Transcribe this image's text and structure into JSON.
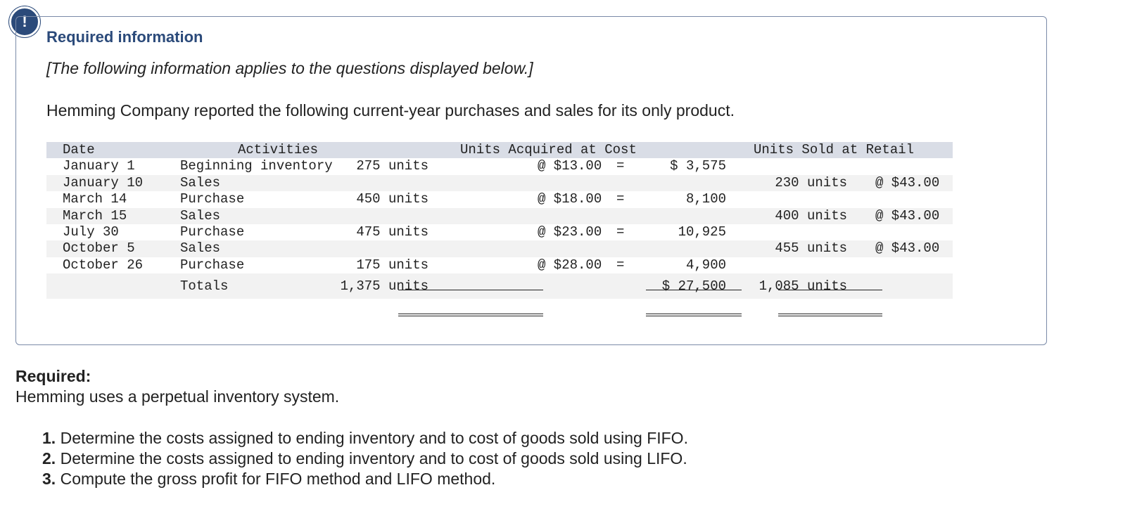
{
  "alert_icon": "!",
  "required_info_title": "Required information",
  "note": "[The following information applies to the questions displayed below.]",
  "intro": "Hemming Company reported the following current-year purchases and sales for its only product.",
  "table": {
    "headers": {
      "date": "Date",
      "activities": "Activities",
      "units_acquired": "Units Acquired at Cost",
      "units_sold": "Units Sold at Retail"
    },
    "rows": [
      {
        "date": "January 1",
        "activity": "Beginning inventory",
        "units": "275 units",
        "price": "@ $13.00",
        "eq": "=",
        "cost": "$ 3,575",
        "sold": "",
        "retail": ""
      },
      {
        "date": "January 10",
        "activity": "Sales",
        "units": "",
        "price": "",
        "eq": "",
        "cost": "",
        "sold": "230 units",
        "retail": "@ $43.00"
      },
      {
        "date": "March 14",
        "activity": "Purchase",
        "units": "450 units",
        "price": "@ $18.00",
        "eq": "=",
        "cost": "8,100",
        "sold": "",
        "retail": ""
      },
      {
        "date": "March 15",
        "activity": "Sales",
        "units": "",
        "price": "",
        "eq": "",
        "cost": "",
        "sold": "400 units",
        "retail": "@ $43.00"
      },
      {
        "date": "July 30",
        "activity": "Purchase",
        "units": "475 units",
        "price": "@ $23.00",
        "eq": "=",
        "cost": "10,925",
        "sold": "",
        "retail": ""
      },
      {
        "date": "October 5",
        "activity": "Sales",
        "units": "",
        "price": "",
        "eq": "",
        "cost": "",
        "sold": "455 units",
        "retail": "@ $43.00"
      },
      {
        "date": "October 26",
        "activity": "Purchase",
        "units": "175 units",
        "price": "@ $28.00",
        "eq": "=",
        "cost": "4,900",
        "sold": "",
        "retail": ""
      }
    ],
    "totals": {
      "label": "Totals",
      "units": "1,375 units",
      "cost": "$ 27,500",
      "sold": "1,085 units"
    }
  },
  "required_label": "Required:",
  "required_text": "Hemming uses a perpetual inventory system.",
  "questions": [
    {
      "num": "1.",
      "text": "Determine the costs assigned to ending inventory and to cost of goods sold using FIFO."
    },
    {
      "num": "2.",
      "text": "Determine the costs assigned to ending inventory and to cost of goods sold using LIFO."
    },
    {
      "num": "3.",
      "text": "Compute the gross profit for FIFO method and LIFO method."
    }
  ]
}
